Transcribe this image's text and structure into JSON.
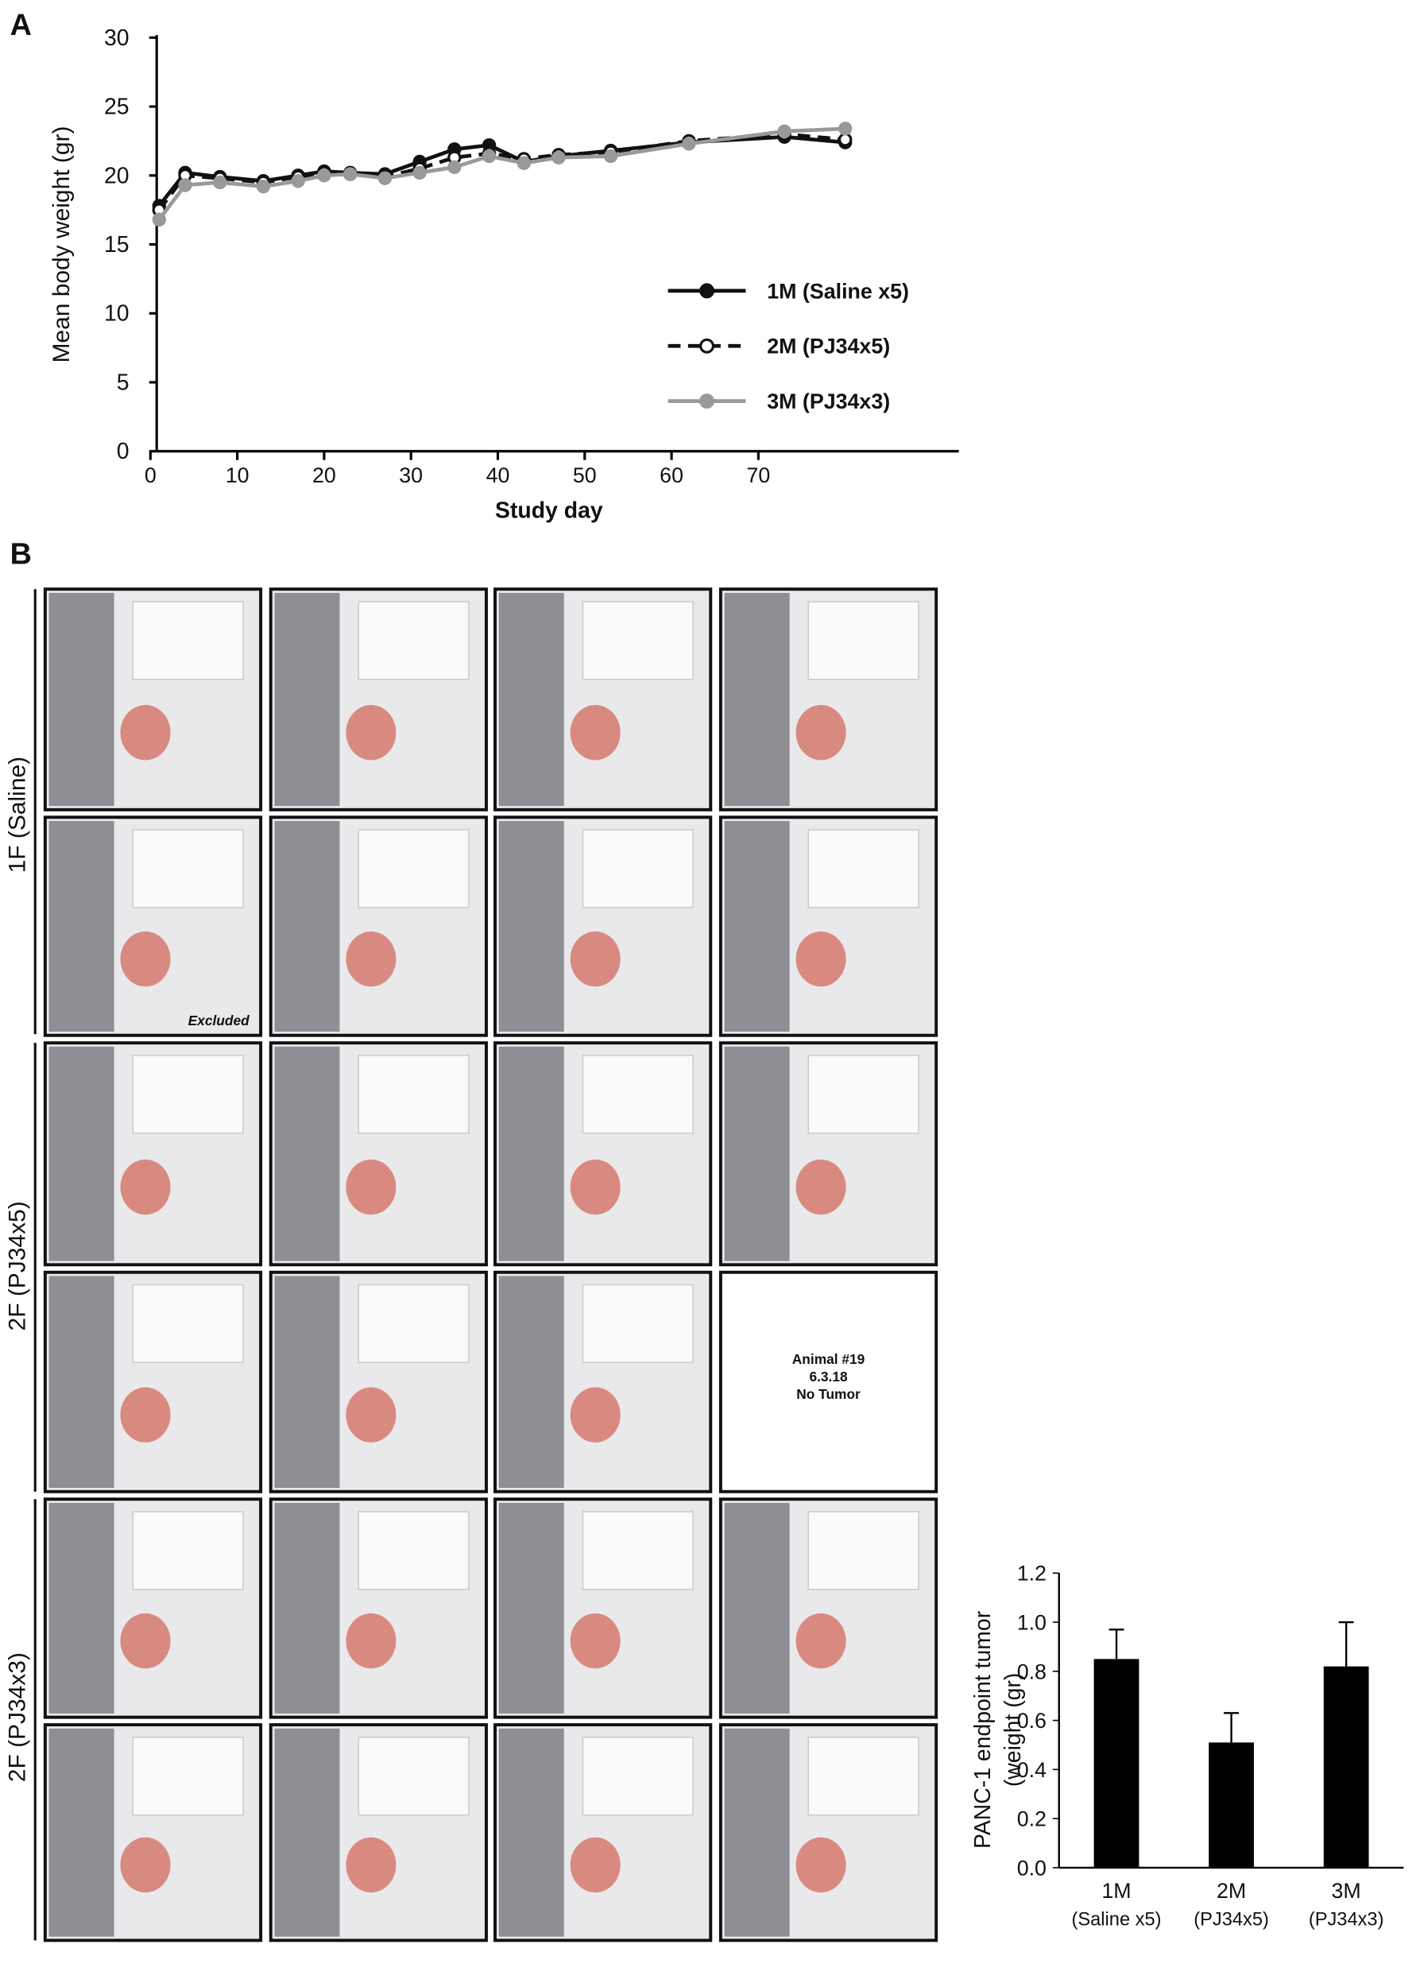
{
  "panel_labels": [
    "A",
    "B"
  ],
  "chart_data": [
    {
      "type": "line",
      "ylabel": "Mean body weight (gr)",
      "xlabel": "Study day",
      "x": [
        1,
        4,
        8,
        13,
        17,
        20,
        23,
        27,
        31,
        35,
        39,
        43,
        47,
        53,
        62,
        73,
        80
      ],
      "xlim": [
        0,
        93
      ],
      "xticks": [
        0,
        10,
        20,
        30,
        40,
        50,
        60,
        70
      ],
      "ylim": [
        0,
        30
      ],
      "yticks": [
        0,
        5,
        10,
        15,
        20,
        25,
        30
      ],
      "series": [
        {
          "name": "1M (Saline x5)",
          "color": "#111111",
          "marker_fill": "#111111",
          "dashed": false,
          "values": [
            17.8,
            20.2,
            19.9,
            19.6,
            20,
            20.3,
            20.2,
            20.1,
            21,
            21.9,
            22.2,
            21,
            21.4,
            21.8,
            22.4,
            22.8,
            22.4
          ]
        },
        {
          "name": "2M (PJ34x5)",
          "color": "#111111",
          "marker_fill": "#ffffff",
          "dashed": true,
          "values": [
            17.5,
            20,
            19.8,
            19.5,
            19.9,
            20.2,
            20.1,
            19.9,
            20.5,
            21.3,
            21.6,
            21.2,
            21.5,
            21.7,
            22.5,
            23,
            22.6
          ]
        },
        {
          "name": "3M (PJ34x3)",
          "color": "#999999",
          "marker_fill": "#999999",
          "dashed": false,
          "values": [
            16.8,
            19.3,
            19.5,
            19.2,
            19.6,
            20,
            20.1,
            19.8,
            20.2,
            20.6,
            21.4,
            20.9,
            21.3,
            21.4,
            22.3,
            23.2,
            23.4
          ]
        }
      ]
    },
    {
      "type": "bar",
      "ylabel": [
        "PANC-1 endpoint tumor",
        "(weight (gr)"
      ],
      "categories": [
        "1M",
        "2M",
        "3M"
      ],
      "groups": [
        "(Saline x5)",
        "(PJ34x5)",
        "(PJ34x3)"
      ],
      "values": [
        0.85,
        0.51,
        0.82
      ],
      "errors": [
        0.12,
        0.12,
        0.18
      ],
      "color": "#000000",
      "ylim": [
        0,
        1.2
      ],
      "yticks": [
        {
          "value": 0,
          "label": "0.0"
        },
        0.2,
        0.4,
        0.6,
        0.8,
        {
          "value": 1,
          "label": "1.0"
        },
        1.2
      ]
    }
  ],
  "panel_b": {
    "row_labels": [
      "1F (Saline)",
      "2F (PJ34x5)",
      "2F (PJ34x3)"
    ],
    "excluded": "Excluded",
    "no_tumor": [
      "Animal #19",
      "6.3.18",
      "No Tumor"
    ]
  }
}
